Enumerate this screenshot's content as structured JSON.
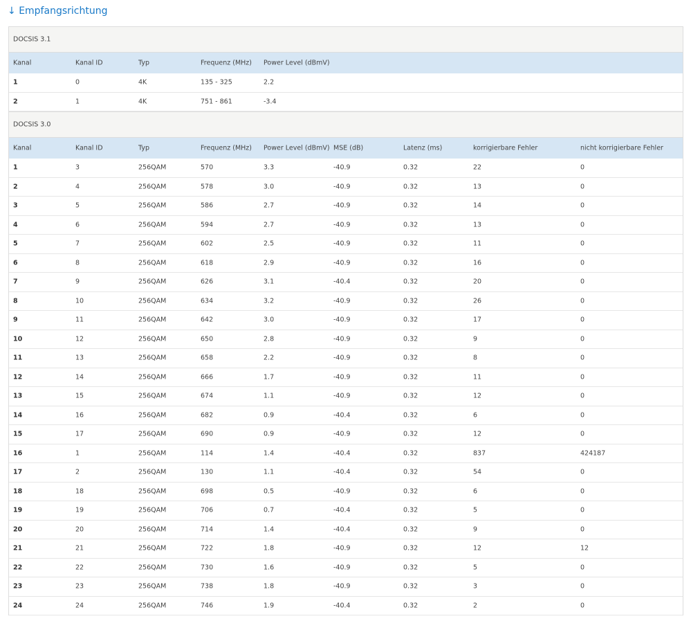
{
  "header": {
    "title": "Empfangsrichtung"
  },
  "sections": [
    {
      "title": "DOCSIS 3.1",
      "columns": [
        "Kanal",
        "Kanal ID",
        "Typ",
        "Frequenz (MHz)",
        "Power Level (dBmV)"
      ],
      "rows": [
        [
          "1",
          "0",
          "4K",
          "135 - 325",
          "2.2"
        ],
        [
          "2",
          "1",
          "4K",
          "751 - 861",
          "-3.4"
        ]
      ]
    },
    {
      "title": "DOCSIS 3.0",
      "columns": [
        "Kanal",
        "Kanal ID",
        "Typ",
        "Frequenz (MHz)",
        "Power Level (dBmV)",
        "MSE (dB)",
        "Latenz (ms)",
        "korrigierbare Fehler",
        "nicht korrigierbare Fehler"
      ],
      "rows": [
        [
          "1",
          "3",
          "256QAM",
          "570",
          "3.3",
          "-40.9",
          "0.32",
          "22",
          "0"
        ],
        [
          "2",
          "4",
          "256QAM",
          "578",
          "3.0",
          "-40.9",
          "0.32",
          "13",
          "0"
        ],
        [
          "3",
          "5",
          "256QAM",
          "586",
          "2.7",
          "-40.9",
          "0.32",
          "14",
          "0"
        ],
        [
          "4",
          "6",
          "256QAM",
          "594",
          "2.7",
          "-40.9",
          "0.32",
          "13",
          "0"
        ],
        [
          "5",
          "7",
          "256QAM",
          "602",
          "2.5",
          "-40.9",
          "0.32",
          "11",
          "0"
        ],
        [
          "6",
          "8",
          "256QAM",
          "618",
          "2.9",
          "-40.9",
          "0.32",
          "16",
          "0"
        ],
        [
          "7",
          "9",
          "256QAM",
          "626",
          "3.1",
          "-40.4",
          "0.32",
          "20",
          "0"
        ],
        [
          "8",
          "10",
          "256QAM",
          "634",
          "3.2",
          "-40.9",
          "0.32",
          "26",
          "0"
        ],
        [
          "9",
          "11",
          "256QAM",
          "642",
          "3.0",
          "-40.9",
          "0.32",
          "17",
          "0"
        ],
        [
          "10",
          "12",
          "256QAM",
          "650",
          "2.8",
          "-40.9",
          "0.32",
          "9",
          "0"
        ],
        [
          "11",
          "13",
          "256QAM",
          "658",
          "2.2",
          "-40.9",
          "0.32",
          "8",
          "0"
        ],
        [
          "12",
          "14",
          "256QAM",
          "666",
          "1.7",
          "-40.9",
          "0.32",
          "11",
          "0"
        ],
        [
          "13",
          "15",
          "256QAM",
          "674",
          "1.1",
          "-40.9",
          "0.32",
          "12",
          "0"
        ],
        [
          "14",
          "16",
          "256QAM",
          "682",
          "0.9",
          "-40.4",
          "0.32",
          "6",
          "0"
        ],
        [
          "15",
          "17",
          "256QAM",
          "690",
          "0.9",
          "-40.9",
          "0.32",
          "12",
          "0"
        ],
        [
          "16",
          "1",
          "256QAM",
          "114",
          "1.4",
          "-40.4",
          "0.32",
          "837",
          "424187"
        ],
        [
          "17",
          "2",
          "256QAM",
          "130",
          "1.1",
          "-40.4",
          "0.32",
          "54",
          "0"
        ],
        [
          "18",
          "18",
          "256QAM",
          "698",
          "0.5",
          "-40.9",
          "0.32",
          "6",
          "0"
        ],
        [
          "19",
          "19",
          "256QAM",
          "706",
          "0.7",
          "-40.4",
          "0.32",
          "5",
          "0"
        ],
        [
          "20",
          "20",
          "256QAM",
          "714",
          "1.4",
          "-40.4",
          "0.32",
          "9",
          "0"
        ],
        [
          "21",
          "21",
          "256QAM",
          "722",
          "1.8",
          "-40.9",
          "0.32",
          "12",
          "12"
        ],
        [
          "22",
          "22",
          "256QAM",
          "730",
          "1.6",
          "-40.9",
          "0.32",
          "5",
          "0"
        ],
        [
          "23",
          "23",
          "256QAM",
          "738",
          "1.8",
          "-40.9",
          "0.32",
          "3",
          "0"
        ],
        [
          "24",
          "24",
          "256QAM",
          "746",
          "1.9",
          "-40.4",
          "0.32",
          "2",
          "0"
        ]
      ]
    }
  ]
}
